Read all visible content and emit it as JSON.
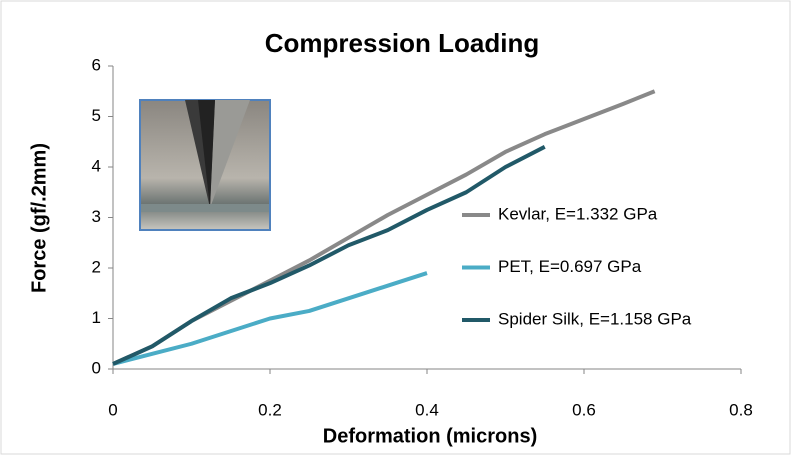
{
  "chart_data": {
    "type": "line",
    "title": "Compression Loading",
    "x_label": "Deformation (microns)",
    "y_label": "Force (gf/.2mm)",
    "xlim": [
      0,
      0.8
    ],
    "xticks": [
      0,
      0.2,
      0.4,
      0.6,
      0.8
    ],
    "ylim": [
      0,
      6
    ],
    "yticks": [
      0,
      1,
      2,
      3,
      4,
      5,
      6
    ],
    "grid": false,
    "legend": "right",
    "series": [
      {
        "name": "Kevlar, E=1.332 GPa",
        "color": "#898989",
        "x": [
          0,
          0.05,
          0.1,
          0.15,
          0.2,
          0.25,
          0.3,
          0.35,
          0.4,
          0.45,
          0.5,
          0.55,
          0.6,
          0.65,
          0.69
        ],
        "values": [
          0.1,
          0.45,
          0.95,
          1.35,
          1.75,
          2.15,
          2.6,
          3.05,
          3.45,
          3.85,
          4.3,
          4.65,
          4.95,
          5.25,
          5.5
        ]
      },
      {
        "name": "PET, E=0.697 GPa",
        "color": "#4bacc6",
        "x": [
          0,
          0.05,
          0.1,
          0.15,
          0.2,
          0.25,
          0.3,
          0.35,
          0.4
        ],
        "values": [
          0.1,
          0.3,
          0.5,
          0.75,
          1.0,
          1.15,
          1.4,
          1.65,
          1.9
        ]
      },
      {
        "name": "Spider Silk, E=1.158 GPa",
        "color": "#215968",
        "x": [
          0,
          0.05,
          0.1,
          0.15,
          0.2,
          0.25,
          0.3,
          0.35,
          0.4,
          0.45,
          0.5,
          0.55
        ],
        "values": [
          0.1,
          0.45,
          0.95,
          1.4,
          1.7,
          2.05,
          2.45,
          2.75,
          3.15,
          3.5,
          4.0,
          4.4
        ]
      }
    ]
  }
}
